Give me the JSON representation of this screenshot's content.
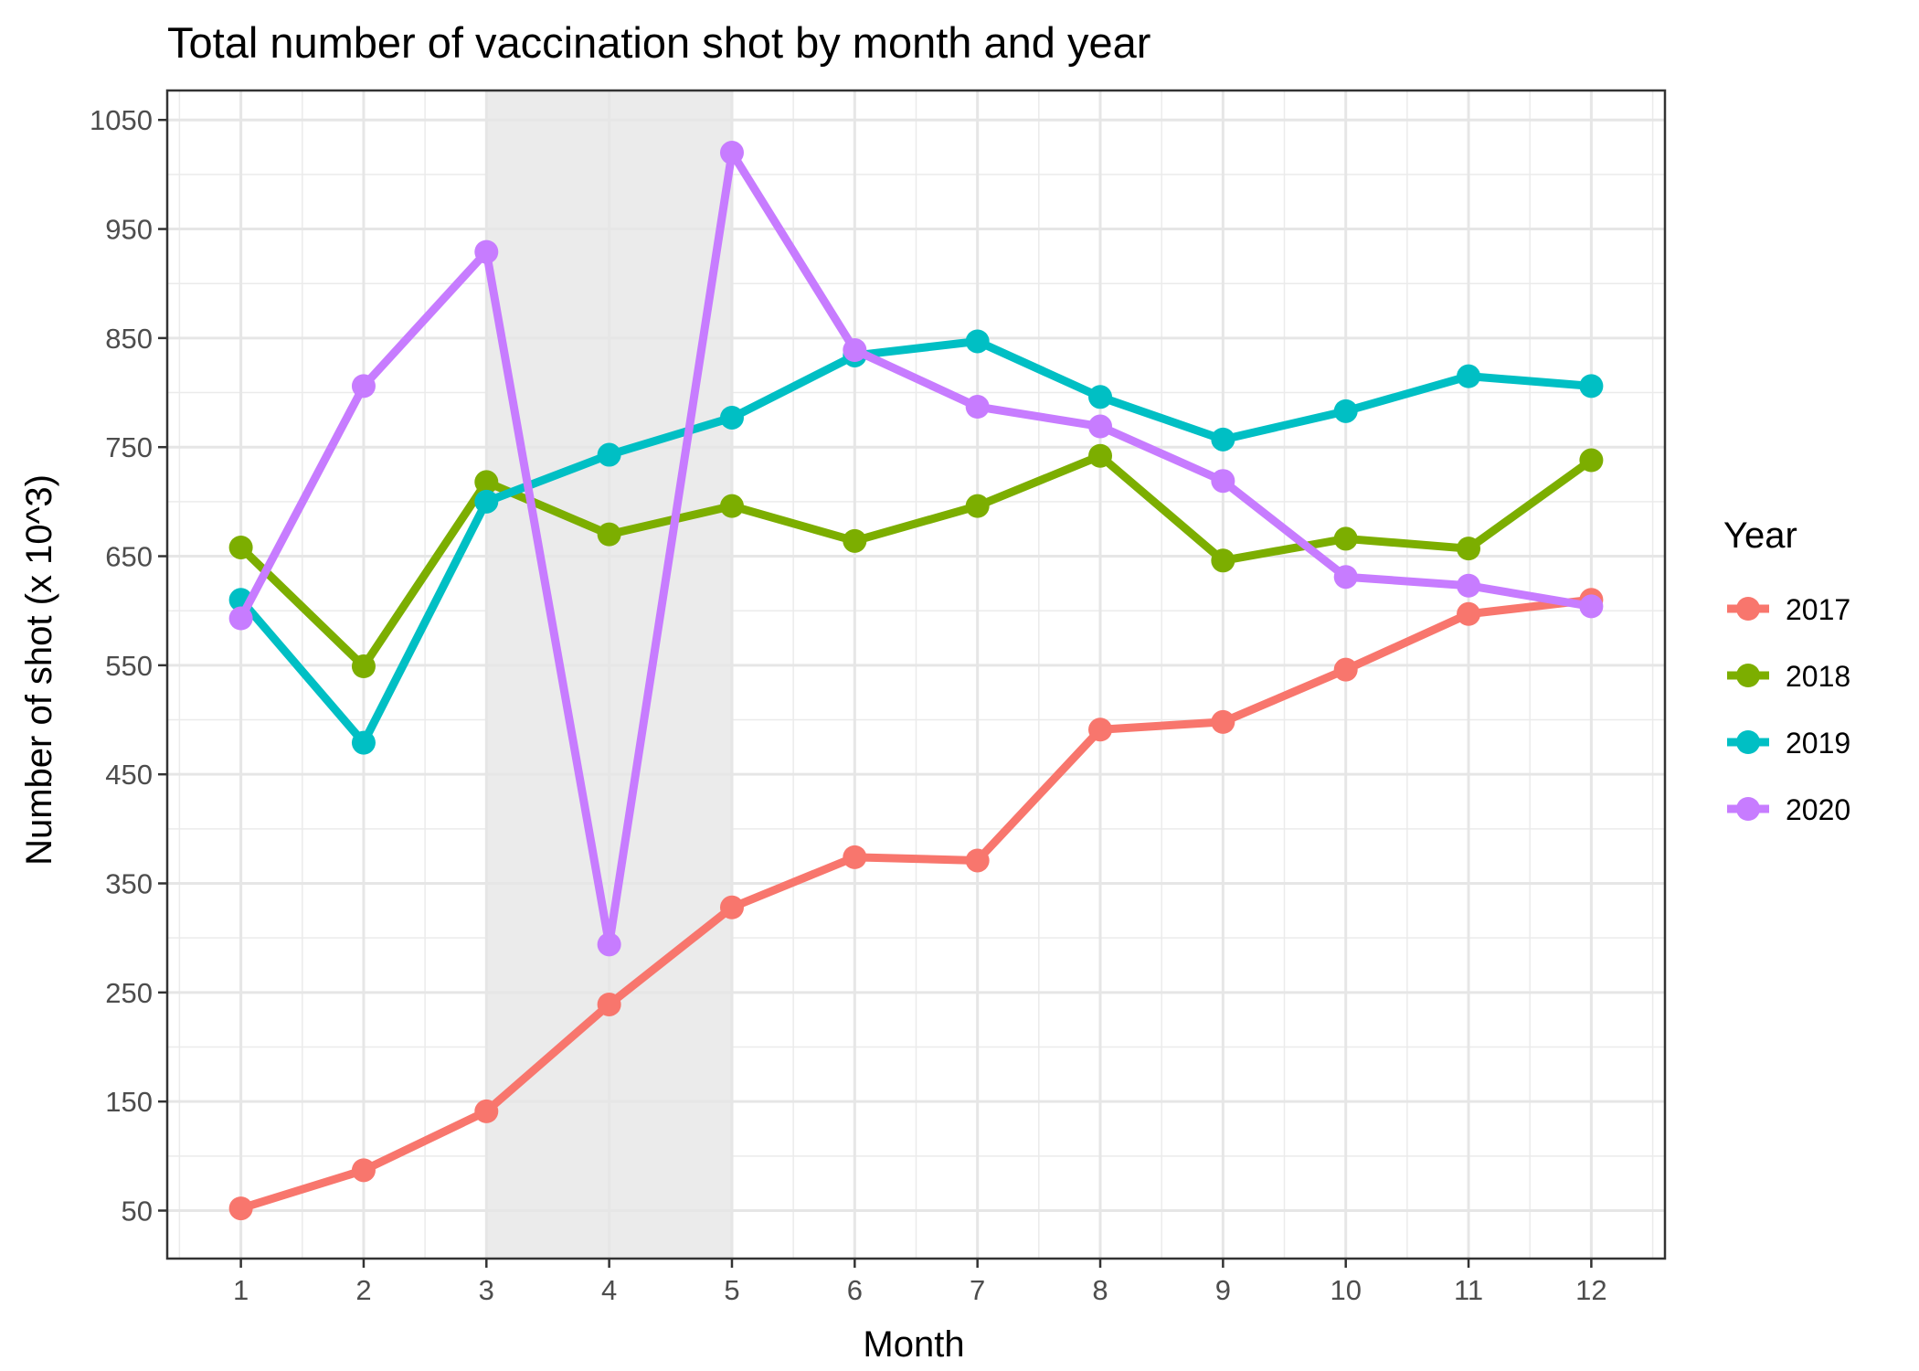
{
  "chart_data": {
    "type": "line",
    "title": "Total number of vaccination shot by month and year",
    "xlabel": "Month",
    "ylabel": "Number of shot (x 10^3)",
    "x": [
      1,
      2,
      3,
      4,
      5,
      6,
      7,
      8,
      9,
      10,
      11,
      12
    ],
    "x_ticks": [
      "1",
      "2",
      "3",
      "4",
      "5",
      "6",
      "7",
      "8",
      "9",
      "10",
      "11",
      "12"
    ],
    "xlim": [
      0.4,
      12.6
    ],
    "ylim": [
      6,
      1077
    ],
    "y_ticks": [
      50,
      150,
      250,
      350,
      450,
      550,
      650,
      750,
      850,
      950,
      1050
    ],
    "y_tick_labels": [
      "50",
      "150",
      "250",
      "350",
      "450",
      "550",
      "650",
      "750",
      "850",
      "950",
      "1050"
    ],
    "shaded_region": {
      "x_start": 3,
      "x_end": 5,
      "color": "#ebebeb"
    },
    "grid": true,
    "legend": {
      "title": "Year",
      "placement": "right"
    },
    "series": [
      {
        "name": "2017",
        "color": "#F8766D",
        "values": [
          52,
          87,
          141,
          239,
          328,
          374,
          371,
          491,
          498,
          546,
          597,
          610
        ]
      },
      {
        "name": "2018",
        "color": "#7CAE00",
        "values": [
          658,
          549,
          718,
          670,
          696,
          664,
          696,
          742,
          646,
          666,
          657,
          738
        ]
      },
      {
        "name": "2019",
        "color": "#00BFC4",
        "values": [
          610,
          479,
          700,
          743,
          777,
          834,
          847,
          796,
          757,
          783,
          815,
          806
        ]
      },
      {
        "name": "2020",
        "color": "#C77CFF",
        "values": [
          593,
          806,
          929,
          294,
          1020,
          839,
          787,
          769,
          719,
          631,
          623,
          604
        ]
      }
    ]
  }
}
